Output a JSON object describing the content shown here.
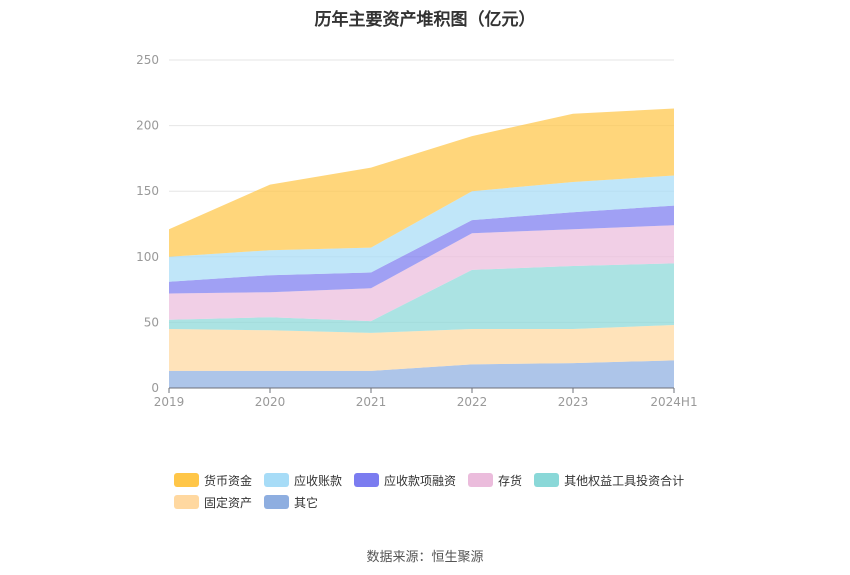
{
  "source_label": "数据来源：恒生聚源",
  "chart_data": {
    "type": "area",
    "stacked": true,
    "title": "历年主要资产堆积图（亿元）",
    "xlabel": "",
    "ylabel": "",
    "x": [
      "2019",
      "2020",
      "2021",
      "2022",
      "2023",
      "2024H1"
    ],
    "ylim": [
      0,
      250
    ],
    "yticks": [
      0,
      50,
      100,
      150,
      200,
      250
    ],
    "grid": true,
    "legend_position": "bottom",
    "series": [
      {
        "name": "其它",
        "color": "#8eaee0",
        "values": [
          13,
          13,
          13,
          18,
          19,
          21
        ]
      },
      {
        "name": "固定资产",
        "color": "#ffd8a0",
        "values": [
          32,
          31,
          29,
          27,
          26,
          27
        ]
      },
      {
        "name": "其他权益工具投资合计",
        "color": "#8ad8d8",
        "values": [
          7,
          10,
          9,
          45,
          48,
          47
        ]
      },
      {
        "name": "存货",
        "color": "#ebbcdc",
        "values": [
          20,
          19,
          25,
          28,
          28,
          29
        ]
      },
      {
        "name": "应收款项融资",
        "color": "#7b7cf0",
        "values": [
          9,
          13,
          12,
          10,
          13,
          15
        ]
      },
      {
        "name": "应收账款",
        "color": "#a7dcf7",
        "values": [
          19,
          19,
          19,
          22,
          23,
          23
        ]
      },
      {
        "name": "货币资金",
        "color": "#ffc648",
        "values": [
          21,
          50,
          61,
          42,
          52,
          51
        ]
      }
    ],
    "legend_order": [
      "货币资金",
      "应收账款",
      "应收款项融资",
      "存货",
      "其他权益工具投资合计",
      "固定资产",
      "其它"
    ]
  }
}
